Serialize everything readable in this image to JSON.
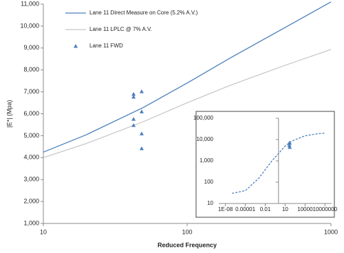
{
  "chart_data": [
    {
      "type": "line",
      "ylabel": "|E*| (Mpa)",
      "xlabel": "Reduced Frequency",
      "xscale": "log",
      "xlim": [
        10,
        1000
      ],
      "ylim": [
        1000,
        11000
      ],
      "xticks": [
        10,
        100,
        1000
      ],
      "yticks": [
        {
          "value": 1000,
          "label": "1,000"
        },
        {
          "value": 2000,
          "label": "2,000"
        },
        {
          "value": 3000,
          "label": "3,000"
        },
        {
          "value": 4000,
          "label": "4,000"
        },
        {
          "value": 5000,
          "label": "5,000"
        },
        {
          "value": 6000,
          "label": "6,000"
        },
        {
          "value": 7000,
          "label": "7,000"
        },
        {
          "value": 8000,
          "label": "8,000"
        },
        {
          "value": 9000,
          "label": "9,000"
        },
        {
          "value": 10000,
          "label": "10,000"
        },
        {
          "value": 11000,
          "label": "11,000"
        }
      ],
      "legend": "top-left",
      "series": [
        {
          "name": "Lane 11 Direct Measure on Core (5.2% A.V.)",
          "color": "#4a7ebb",
          "style": "line",
          "x": [
            10,
            20,
            50,
            100,
            200,
            500,
            1000
          ],
          "values": [
            4250,
            5050,
            6300,
            7400,
            8550,
            10000,
            11100
          ]
        },
        {
          "name": "Lane 11 LPLC @ 7% A.V.",
          "color": "#c8c8c8",
          "style": "line",
          "x": [
            10,
            20,
            50,
            100,
            200,
            500,
            1000
          ],
          "values": [
            4000,
            4650,
            5650,
            6500,
            7300,
            8250,
            8930
          ]
        },
        {
          "name": "Lane 11 FWD",
          "color": "#4a7ebb",
          "style": "marker",
          "x": [
            42.4,
            42.4,
            42.4,
            42.4,
            48.3,
            48.3,
            48.3,
            48.3
          ],
          "values": [
            6900,
            6770,
            5760,
            5480,
            7020,
            6100,
            5100,
            4420
          ]
        }
      ]
    },
    {
      "type": "line",
      "xscale": "log",
      "yscale": "log",
      "xlim": [
        1e-09,
        100000000.0
      ],
      "ylim": [
        10,
        100000
      ],
      "y_axis_crosses": 1,
      "xticks": [
        {
          "value": 1e-08,
          "label": "1E-08"
        },
        {
          "value": 1e-05,
          "label": "0.00001"
        },
        {
          "value": 0.01,
          "label": "0.01"
        },
        10,
        10000,
        {
          "value": 10000000,
          "label": "10000000"
        }
      ],
      "yticks": [
        10,
        100,
        {
          "value": 1000,
          "label": "1,000"
        },
        {
          "value": 10000,
          "label": "10,000"
        },
        {
          "value": 100000,
          "label": "100,000"
        }
      ],
      "series": [
        {
          "color": "#4a7ebb",
          "style": "dashed",
          "x": [
            1e-07,
            1e-05,
            0.001,
            0.1,
            1,
            10,
            100,
            10000,
            1000000,
            10000000
          ],
          "values": [
            30,
            40,
            150,
            1000,
            2200,
            5000,
            8500,
            15000,
            19000,
            20000
          ]
        },
        {
          "color": "#4a7ebb",
          "style": "marker",
          "x": [
            42.4,
            42.4,
            48.3,
            48.3
          ],
          "values": [
            6900,
            5480,
            7020,
            4420
          ]
        }
      ]
    }
  ]
}
